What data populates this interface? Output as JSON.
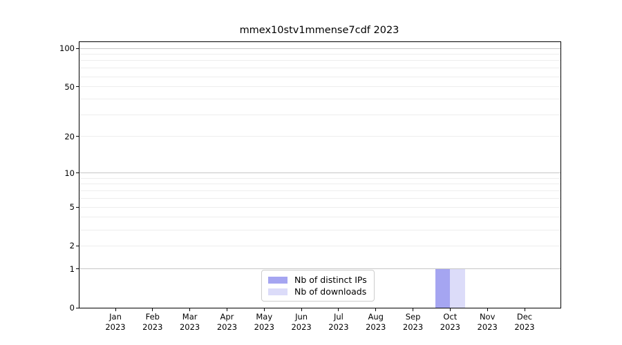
{
  "figure": {
    "background": "#ffffff"
  },
  "chart_data": {
    "type": "bar",
    "title": "mmex10stv1mmense7cdf 2023",
    "categories": [
      "Jan 2023",
      "Feb 2023",
      "Mar 2023",
      "Apr 2023",
      "May 2023",
      "Jun 2023",
      "Jul 2023",
      "Aug 2023",
      "Sep 2023",
      "Oct 2023",
      "Nov 2023",
      "Dec 2023"
    ],
    "series": [
      {
        "name": "Nb of distinct IPs",
        "color": "#a5a5f1",
        "values": [
          0,
          0,
          0,
          0,
          0,
          0,
          0,
          0,
          0,
          1,
          0,
          0
        ]
      },
      {
        "name": "Nb of downloads",
        "color": "#dcdcf9",
        "values": [
          0,
          0,
          0,
          0,
          0,
          0,
          0,
          0,
          0,
          1,
          0,
          0
        ]
      }
    ],
    "xlabel": "",
    "ylabel": "",
    "yscale": "log1p",
    "ylim": [
      0,
      113
    ],
    "yticks": [
      0,
      1,
      2,
      5,
      10,
      20,
      50,
      100
    ],
    "y_major_gridlines": [
      1,
      10,
      100
    ],
    "y_minor_gridlines": [
      2,
      3,
      4,
      5,
      6,
      7,
      8,
      9,
      20,
      30,
      40,
      50,
      60,
      70,
      80,
      90
    ],
    "grid": "horizontal",
    "legend_position": "lower-center-inside",
    "colors": {
      "major_grid": "#c6c6c6",
      "minor_grid": "#ededed",
      "spine": "#000000",
      "text": "#000000"
    }
  }
}
